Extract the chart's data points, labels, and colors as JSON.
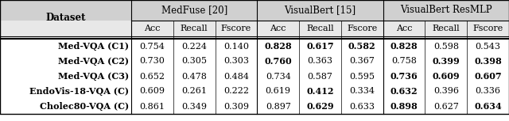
{
  "col_groups": [
    {
      "label": "MedFuse [20]",
      "cols": [
        "Acc",
        "Recall",
        "Fscore"
      ]
    },
    {
      "label": "VisualBert [15]",
      "cols": [
        "Acc",
        "Recall",
        "Fscore"
      ]
    },
    {
      "label": "VisualBert ResMLP",
      "cols": [
        "Acc",
        "Recall",
        "Fscore"
      ]
    }
  ],
  "row_labels": [
    "Med-VQA (C1)",
    "Med-VQA (C2)",
    "Med-VQA (C3)",
    "EndoVis-18-VQA (C)",
    "Cholec80-VQA (C)"
  ],
  "data": [
    [
      0.754,
      0.224,
      0.14,
      0.828,
      0.617,
      0.582,
      0.828,
      0.598,
      0.543
    ],
    [
      0.73,
      0.305,
      0.303,
      0.76,
      0.363,
      0.367,
      0.758,
      0.399,
      0.398
    ],
    [
      0.652,
      0.478,
      0.484,
      0.734,
      0.587,
      0.595,
      0.736,
      0.609,
      0.607
    ],
    [
      0.609,
      0.261,
      0.222,
      0.619,
      0.412,
      0.334,
      0.632,
      0.396,
      0.336
    ],
    [
      0.861,
      0.349,
      0.309,
      0.897,
      0.629,
      0.633,
      0.898,
      0.627,
      0.634
    ]
  ],
  "bold": [
    [
      false,
      false,
      false,
      true,
      true,
      true,
      true,
      false,
      false
    ],
    [
      false,
      false,
      false,
      true,
      false,
      false,
      false,
      true,
      true
    ],
    [
      false,
      false,
      false,
      false,
      false,
      false,
      true,
      true,
      true
    ],
    [
      false,
      false,
      false,
      false,
      true,
      false,
      true,
      false,
      false
    ],
    [
      false,
      false,
      false,
      false,
      true,
      false,
      true,
      false,
      true
    ]
  ],
  "bg_color": "#ffffff",
  "font_size": 8.0,
  "header_font_size": 8.5
}
